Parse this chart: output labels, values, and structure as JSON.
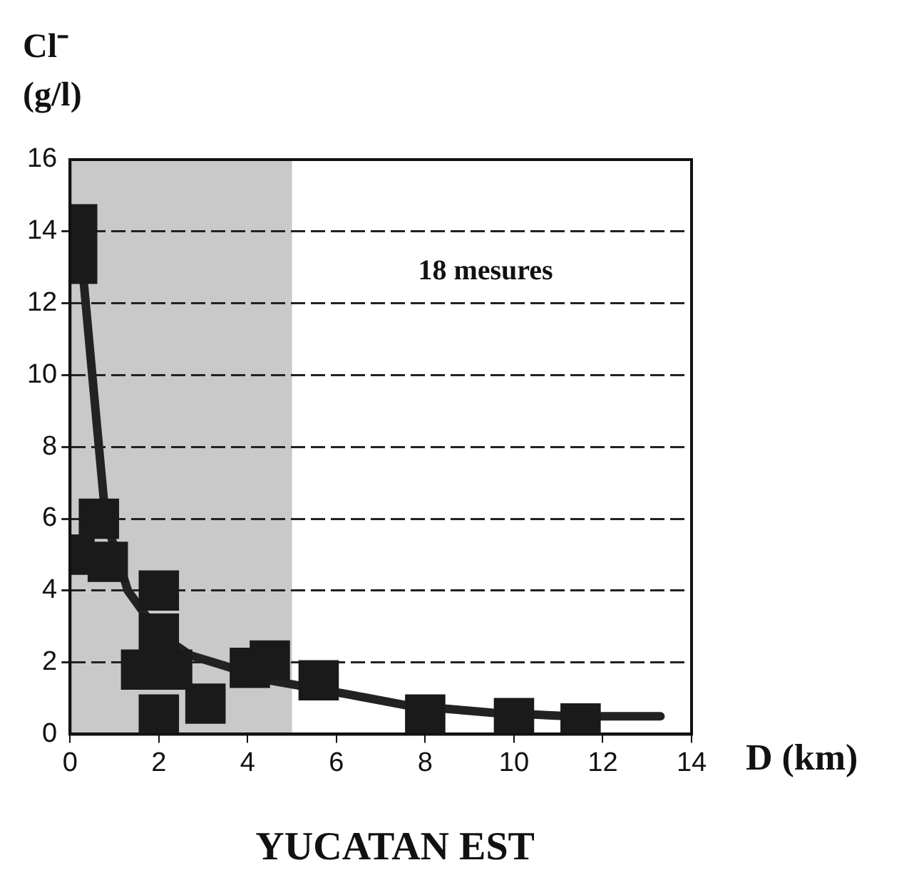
{
  "chart_data": {
    "type": "scatter",
    "title": "YUCATAN EST",
    "xlabel": "D (km)",
    "ylabel": "Cl⁻ (g/l)",
    "xlim": [
      0,
      14
    ],
    "xticks": [
      0,
      2,
      4,
      6,
      8,
      10,
      12,
      14
    ],
    "ylim": [
      0,
      16
    ],
    "yticks": [
      0,
      2,
      4,
      6,
      8,
      10,
      12,
      14,
      16
    ],
    "grid": "y",
    "legend": false,
    "marker": "square",
    "annotations": [
      "18 mesures"
    ],
    "bands": [
      {
        "axis": "x",
        "from": 0,
        "to": 5,
        "color": "#c9c9c9"
      }
    ],
    "series": [
      {
        "color": "#1a1a1a",
        "x": [
          0.16,
          0.16,
          0.1,
          0.65,
          0.85,
          2.0,
          2.0,
          1.6,
          2.3,
          2.0,
          3.05,
          4.05,
          4.5,
          5.6,
          8.0,
          10.0,
          11.5
        ],
        "values": [
          14.2,
          13.1,
          5.0,
          6.0,
          4.8,
          4.0,
          2.8,
          1.8,
          1.8,
          0.55,
          0.85,
          1.85,
          2.05,
          1.5,
          0.55,
          0.45,
          0.3
        ]
      },
      {
        "type": "line",
        "marker": "none",
        "color": "#222222",
        "x": [
          0.3,
          0.5,
          0.8,
          1.3,
          2.0,
          2.7,
          3.5,
          4.5,
          6.3,
          7.6,
          9.5,
          11.3,
          13.3
        ],
        "values": [
          12.7,
          10,
          6,
          4,
          2.8,
          2.2,
          1.9,
          1.5,
          1.1,
          0.8,
          0.6,
          0.5,
          0.5
        ]
      }
    ]
  }
}
